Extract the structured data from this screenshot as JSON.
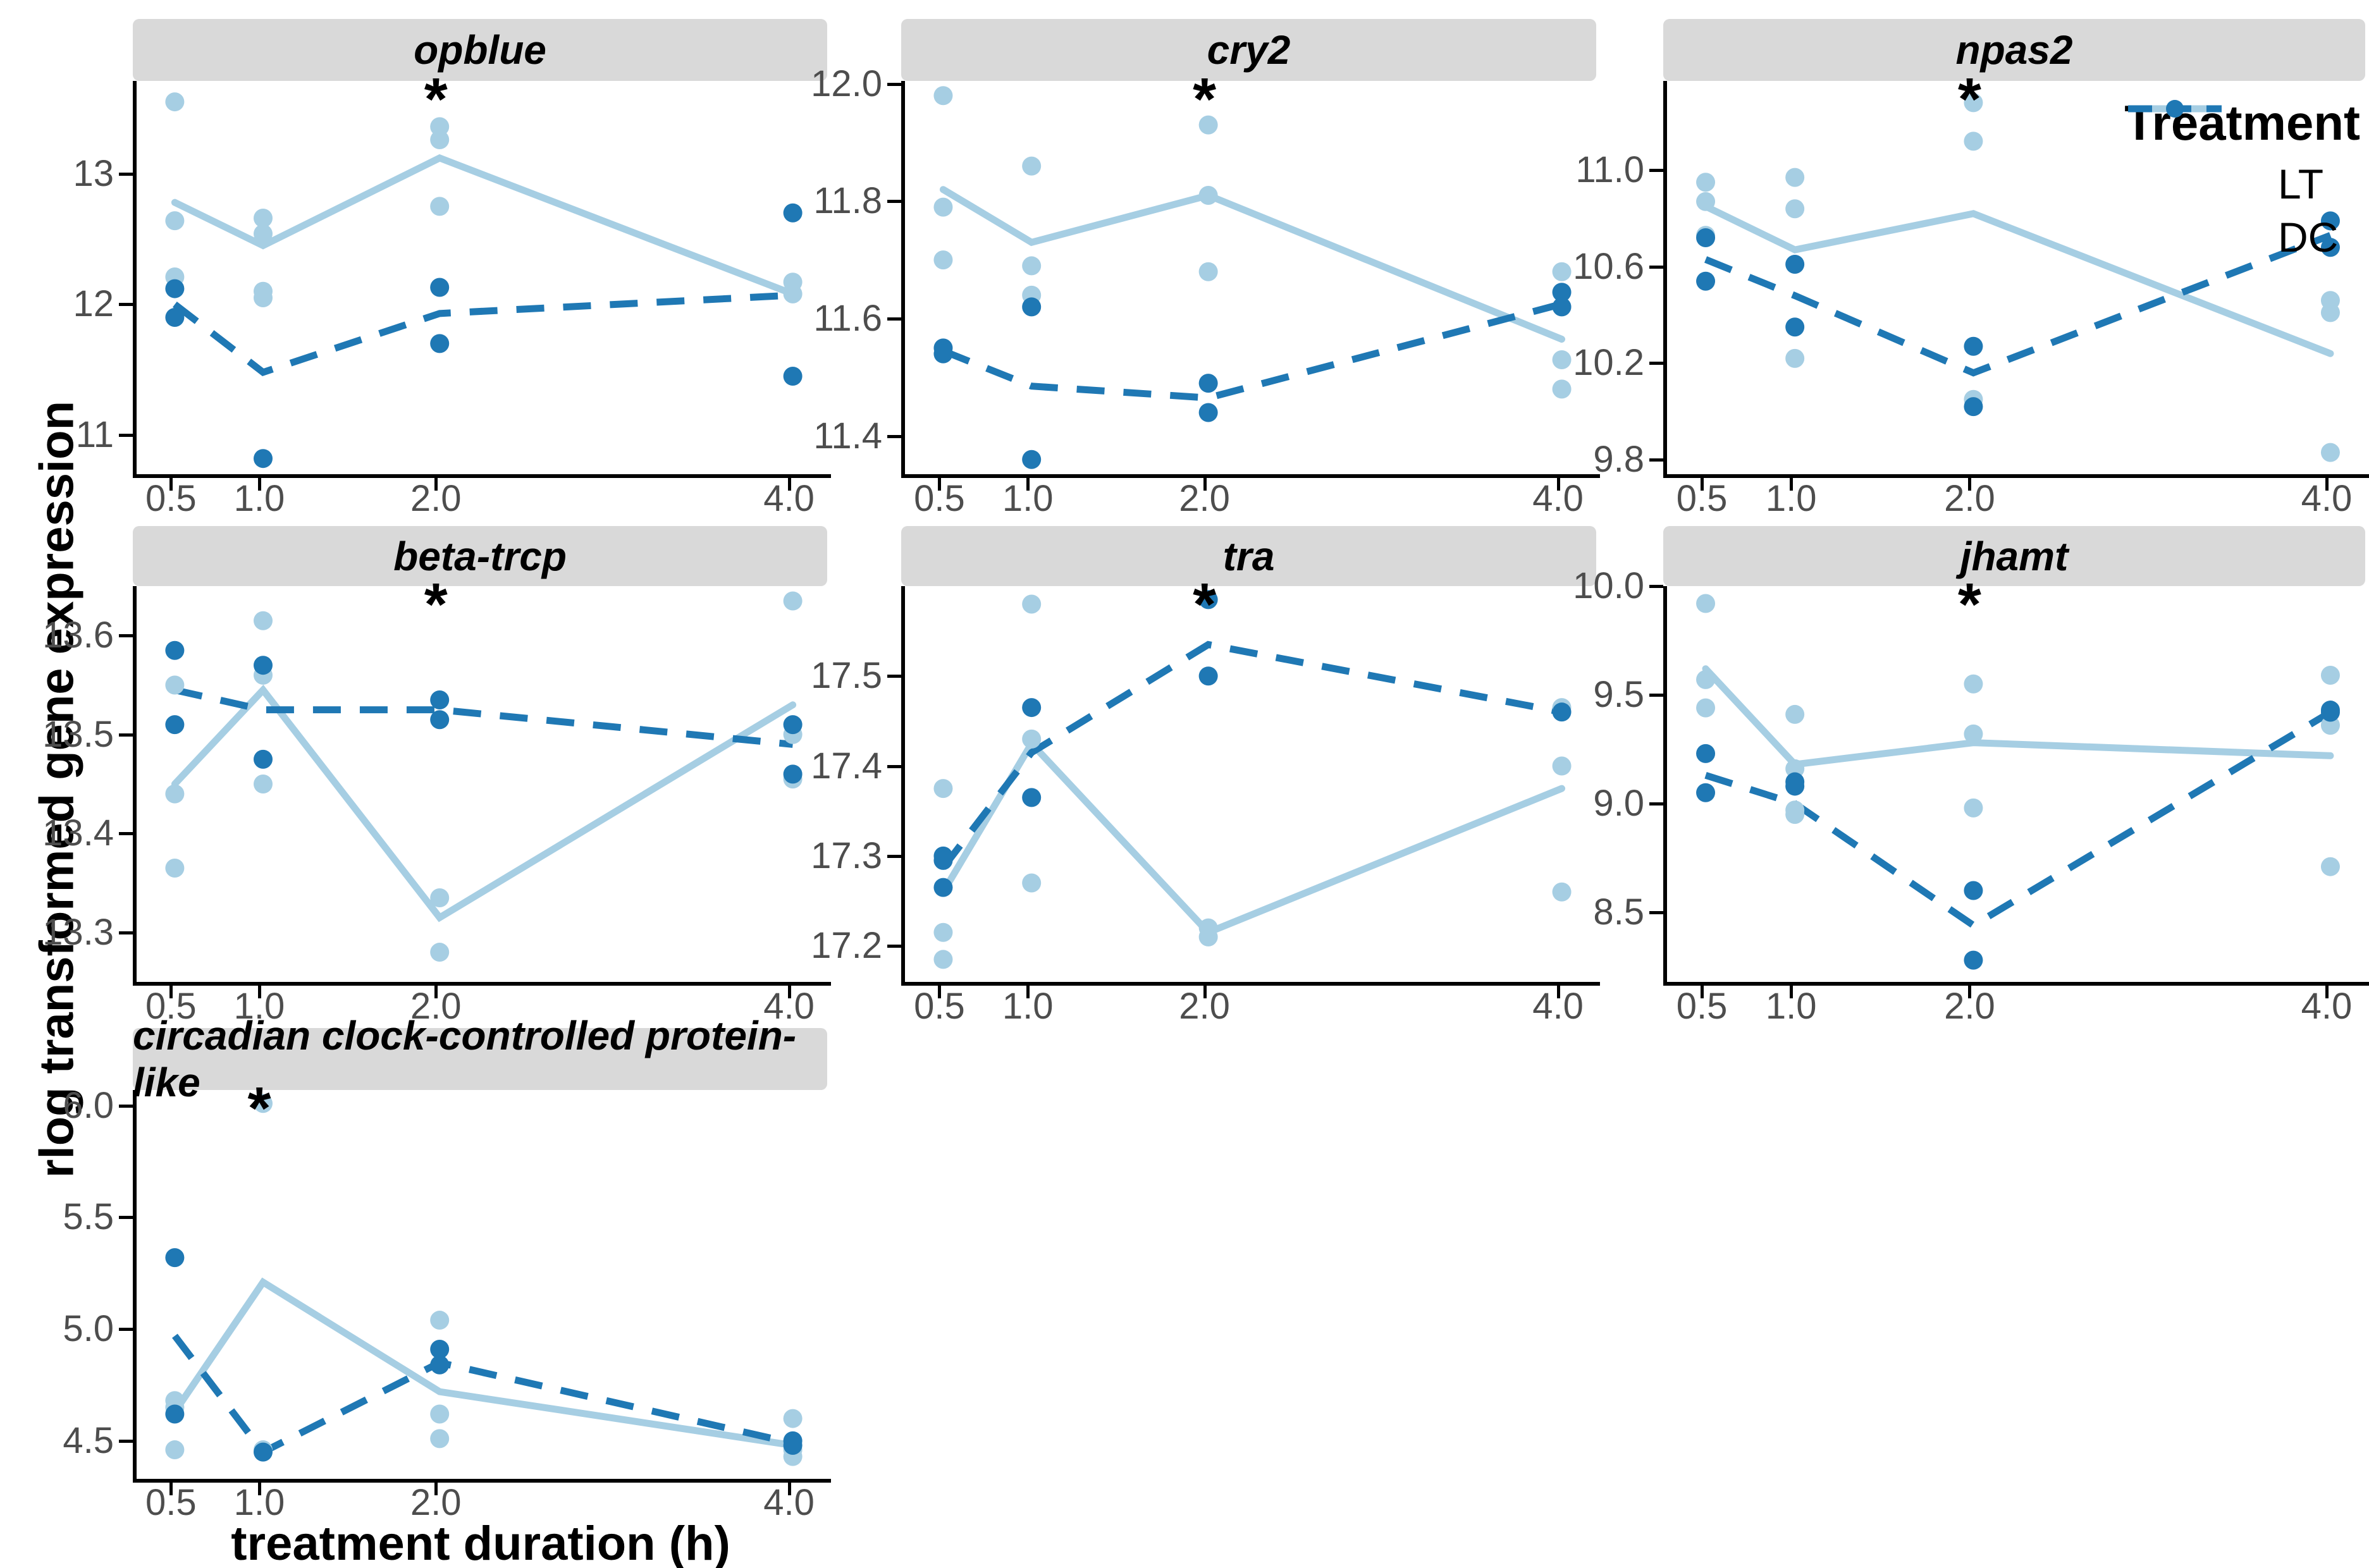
{
  "figure": {
    "y_axis_label": "rlog transformed gene expression",
    "x_axis_label": "treatment duration (h)",
    "significance_marker": "*",
    "colors": {
      "lt": "#A6CEE3",
      "dc": "#1F78B4",
      "strip_bg": "#D9D9D9",
      "axis_text": "#4D4D4D",
      "axis_line": "#000000",
      "marker": "#000000"
    }
  },
  "chart_data": {
    "type": "line",
    "x": [
      0.5,
      1.0,
      2.0,
      4.0
    ],
    "x_tick_labels": [
      "0.5",
      "1.0",
      "2.0",
      "4.0"
    ],
    "xlabel": "treatment duration (h)",
    "ylabel": "rlog transformed gene expression",
    "legend": {
      "title": "Treatment",
      "position": "inside-top-right-of-npas2-panel",
      "series": [
        {
          "name": "LT",
          "style": "solid",
          "color": "#A6CEE3"
        },
        {
          "name": "DC",
          "style": "dashed",
          "color": "#1F78B4"
        }
      ]
    },
    "panels": [
      {
        "title": "opblue",
        "ylim": [
          10.7,
          13.71
        ],
        "yticks": [
          {
            "v": 11,
            "label": "11"
          },
          {
            "v": 12,
            "label": "12"
          },
          {
            "v": 13,
            "label": "13"
          }
        ],
        "star_x": 2.0,
        "lt_points": [
          [
            0.5,
            13.55
          ],
          [
            0.5,
            12.64
          ],
          [
            0.5,
            12.21
          ],
          [
            1.0,
            12.66
          ],
          [
            1.0,
            12.54
          ],
          [
            1.0,
            12.1
          ],
          [
            1.0,
            12.05
          ],
          [
            2.0,
            13.36
          ],
          [
            2.0,
            13.26
          ],
          [
            2.0,
            12.75
          ],
          [
            4.0,
            12.17
          ],
          [
            4.0,
            12.08
          ]
        ],
        "dc_points": [
          [
            0.5,
            12.12
          ],
          [
            0.5,
            11.9
          ],
          [
            1.0,
            10.82
          ],
          [
            2.0,
            12.13
          ],
          [
            2.0,
            11.7
          ],
          [
            4.0,
            12.7
          ],
          [
            4.0,
            11.45
          ]
        ],
        "lt_line": [
          12.78,
          12.45,
          13.12,
          12.08
        ],
        "dc_line": [
          12.0,
          11.48,
          11.93,
          12.07
        ]
      },
      {
        "title": "cry2",
        "ylim": [
          11.335,
          12.005
        ],
        "yticks": [
          {
            "v": 11.4,
            "label": "11.4"
          },
          {
            "v": 11.6,
            "label": "11.6"
          },
          {
            "v": 11.8,
            "label": "11.8"
          },
          {
            "v": 12.0,
            "label": "12.0"
          }
        ],
        "star_x": 2.0,
        "lt_points": [
          [
            0.5,
            11.98
          ],
          [
            0.5,
            11.79
          ],
          [
            0.5,
            11.7
          ],
          [
            1.0,
            11.86
          ],
          [
            1.0,
            11.69
          ],
          [
            1.0,
            11.64
          ],
          [
            2.0,
            11.93
          ],
          [
            2.0,
            11.81
          ],
          [
            2.0,
            11.68
          ],
          [
            4.0,
            11.68
          ],
          [
            4.0,
            11.53
          ],
          [
            4.0,
            11.48
          ]
        ],
        "dc_points": [
          [
            0.5,
            11.55
          ],
          [
            0.5,
            11.54
          ],
          [
            1.0,
            11.62
          ],
          [
            1.0,
            11.36
          ],
          [
            2.0,
            11.49
          ],
          [
            2.0,
            11.44
          ],
          [
            4.0,
            11.645
          ],
          [
            4.0,
            11.62
          ]
        ],
        "lt_line": [
          11.82,
          11.73,
          11.81,
          11.565
        ],
        "dc_line": [
          11.545,
          11.485,
          11.465,
          11.625
        ]
      },
      {
        "title": "npas2",
        "ylim": [
          9.74,
          11.37
        ],
        "yticks": [
          {
            "v": 9.8,
            "label": "9.8"
          },
          {
            "v": 10.2,
            "label": "10.2"
          },
          {
            "v": 10.6,
            "label": "10.6"
          },
          {
            "v": 11.0,
            "label": "11.0"
          }
        ],
        "star_x": 2.0,
        "lt_points": [
          [
            0.5,
            10.95
          ],
          [
            0.5,
            10.87
          ],
          [
            0.5,
            10.73
          ],
          [
            1.0,
            10.97
          ],
          [
            1.0,
            10.84
          ],
          [
            1.0,
            10.22
          ],
          [
            2.0,
            11.28
          ],
          [
            2.0,
            11.12
          ],
          [
            2.0,
            10.05
          ],
          [
            4.0,
            10.46
          ],
          [
            4.0,
            10.41
          ],
          [
            4.0,
            9.83
          ]
        ],
        "dc_points": [
          [
            0.5,
            10.72
          ],
          [
            0.5,
            10.54
          ],
          [
            1.0,
            10.61
          ],
          [
            1.0,
            10.35
          ],
          [
            2.0,
            10.27
          ],
          [
            2.0,
            10.02
          ],
          [
            4.0,
            10.79
          ],
          [
            4.0,
            10.68
          ]
        ],
        "lt_line": [
          10.85,
          10.67,
          10.82,
          10.24
        ],
        "dc_line": [
          10.63,
          10.48,
          10.16,
          10.73
        ]
      },
      {
        "title": "beta-trcp",
        "ylim": [
          13.25,
          13.65
        ],
        "yticks": [
          {
            "v": 13.3,
            "label": "13.3"
          },
          {
            "v": 13.4,
            "label": "13.4"
          },
          {
            "v": 13.5,
            "label": "13.5"
          },
          {
            "v": 13.6,
            "label": "13.6"
          }
        ],
        "star_x": 2.0,
        "lt_points": [
          [
            0.5,
            13.55
          ],
          [
            0.5,
            13.44
          ],
          [
            0.5,
            13.365
          ],
          [
            1.0,
            13.615
          ],
          [
            1.0,
            13.56
          ],
          [
            1.0,
            13.45
          ],
          [
            2.0,
            13.335
          ],
          [
            2.0,
            13.28
          ],
          [
            4.0,
            13.635
          ],
          [
            4.0,
            13.5
          ],
          [
            4.0,
            13.455
          ]
        ],
        "dc_points": [
          [
            0.5,
            13.585
          ],
          [
            0.5,
            13.51
          ],
          [
            1.0,
            13.57
          ],
          [
            1.0,
            13.475
          ],
          [
            2.0,
            13.535
          ],
          [
            2.0,
            13.515
          ],
          [
            4.0,
            13.51
          ],
          [
            4.0,
            13.46
          ]
        ],
        "lt_line": [
          13.45,
          13.545,
          13.315,
          13.53
        ],
        "dc_line": [
          13.545,
          13.525,
          13.525,
          13.49
        ]
      },
      {
        "title": "tra",
        "ylim": [
          17.16,
          17.6
        ],
        "yticks": [
          {
            "v": 17.2,
            "label": "17.2"
          },
          {
            "v": 17.3,
            "label": "17.3"
          },
          {
            "v": 17.4,
            "label": "17.4"
          },
          {
            "v": 17.5,
            "label": "17.5"
          }
        ],
        "star_x": 2.0,
        "lt_points": [
          [
            0.5,
            17.375
          ],
          [
            0.5,
            17.215
          ],
          [
            0.5,
            17.185
          ],
          [
            1.0,
            17.58
          ],
          [
            1.0,
            17.43
          ],
          [
            1.0,
            17.27
          ],
          [
            2.0,
            17.22
          ],
          [
            2.0,
            17.21
          ],
          [
            4.0,
            17.465
          ],
          [
            4.0,
            17.4
          ],
          [
            4.0,
            17.26
          ]
        ],
        "dc_points": [
          [
            0.5,
            17.3
          ],
          [
            0.5,
            17.295
          ],
          [
            0.5,
            17.265
          ],
          [
            1.0,
            17.465
          ],
          [
            1.0,
            17.365
          ],
          [
            2.0,
            17.585
          ],
          [
            2.0,
            17.5
          ],
          [
            4.0,
            17.46
          ]
        ],
        "lt_line": [
          17.26,
          17.425,
          17.215,
          17.375
        ],
        "dc_line": [
          17.287,
          17.415,
          17.535,
          17.46
        ]
      },
      {
        "title": "jhamt",
        "ylim": [
          8.18,
          10.0
        ],
        "yticks": [
          {
            "v": 8.5,
            "label": "8.5"
          },
          {
            "v": 9.0,
            "label": "9.0"
          },
          {
            "v": 9.5,
            "label": "9.5"
          },
          {
            "v": 10.0,
            "label": "10.0"
          }
        ],
        "star_x": 2.0,
        "lt_points": [
          [
            0.5,
            9.92
          ],
          [
            0.5,
            9.57
          ],
          [
            0.5,
            9.44
          ],
          [
            1.0,
            9.41
          ],
          [
            1.0,
            9.16
          ],
          [
            1.0,
            8.97
          ],
          [
            1.0,
            8.95
          ],
          [
            2.0,
            9.55
          ],
          [
            2.0,
            9.32
          ],
          [
            2.0,
            8.98
          ],
          [
            4.0,
            9.59
          ],
          [
            4.0,
            9.36
          ],
          [
            4.0,
            8.71
          ]
        ],
        "dc_points": [
          [
            0.5,
            9.23
          ],
          [
            0.5,
            9.05
          ],
          [
            1.0,
            9.1
          ],
          [
            1.0,
            9.08
          ],
          [
            2.0,
            8.6
          ],
          [
            2.0,
            8.28
          ],
          [
            4.0,
            9.43
          ],
          [
            4.0,
            9.42
          ]
        ],
        "lt_line": [
          9.62,
          9.18,
          9.28,
          9.22
        ],
        "dc_line": [
          9.13,
          9.0,
          8.44,
          9.42
        ]
      },
      {
        "title": "circadian clock-controlled protein-like",
        "ylim": [
          4.33,
          6.07
        ],
        "yticks": [
          {
            "v": 4.5,
            "label": "4.5"
          },
          {
            "v": 5.0,
            "label": "5.0"
          },
          {
            "v": 5.5,
            "label": "5.5"
          },
          {
            "v": 6.0,
            "label": "6.0"
          }
        ],
        "star_x": 1.0,
        "lt_points": [
          [
            0.5,
            4.68
          ],
          [
            0.5,
            4.65
          ],
          [
            0.5,
            4.46
          ],
          [
            1.0,
            6.01
          ],
          [
            1.0,
            4.46
          ],
          [
            2.0,
            5.04
          ],
          [
            2.0,
            4.62
          ],
          [
            2.0,
            4.51
          ],
          [
            4.0,
            4.6
          ],
          [
            4.0,
            4.46
          ],
          [
            4.0,
            4.43
          ]
        ],
        "dc_points": [
          [
            0.5,
            5.32
          ],
          [
            0.5,
            4.62
          ],
          [
            1.0,
            4.45
          ],
          [
            2.0,
            4.91
          ],
          [
            2.0,
            4.84
          ],
          [
            4.0,
            4.5
          ],
          [
            4.0,
            4.48
          ]
        ],
        "lt_line": [
          4.63,
          5.21,
          4.72,
          4.48
        ],
        "dc_line": [
          4.97,
          4.45,
          4.85,
          4.49
        ]
      }
    ]
  }
}
